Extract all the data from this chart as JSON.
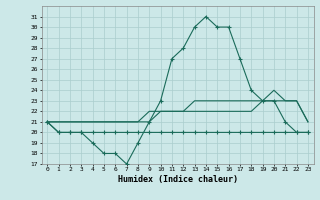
{
  "x": [
    0,
    1,
    2,
    3,
    4,
    5,
    6,
    7,
    8,
    9,
    10,
    11,
    12,
    13,
    14,
    15,
    16,
    17,
    18,
    19,
    20,
    21,
    22,
    23
  ],
  "line_main": [
    21,
    20,
    20,
    20,
    19,
    18,
    18,
    17,
    19,
    21,
    23,
    27,
    28,
    30,
    31,
    30,
    30,
    27,
    24,
    23,
    23,
    21,
    20,
    20
  ],
  "line_min": [
    21,
    20,
    20,
    20,
    20,
    20,
    20,
    20,
    20,
    20,
    20,
    20,
    20,
    20,
    20,
    20,
    20,
    20,
    20,
    20,
    20,
    20,
    20,
    20
  ],
  "line_diag1": [
    21,
    21,
    21,
    21,
    21,
    21,
    21,
    21,
    21,
    21,
    22,
    22,
    22,
    22,
    22,
    22,
    22,
    22,
    22,
    23,
    23,
    23,
    23,
    21
  ],
  "line_diag2": [
    21,
    21,
    21,
    21,
    21,
    21,
    21,
    21,
    21,
    22,
    22,
    22,
    22,
    23,
    23,
    23,
    23,
    23,
    23,
    23,
    24,
    23,
    23,
    21
  ],
  "color": "#1a6b5a",
  "bg_color": "#cce8e8",
  "grid_color": "#aacece",
  "xlabel": "Humidex (Indice chaleur)",
  "ylim": [
    17,
    32
  ],
  "xlim": [
    -0.5,
    23.5
  ],
  "yticks": [
    17,
    18,
    19,
    20,
    21,
    22,
    23,
    24,
    25,
    26,
    27,
    28,
    29,
    30,
    31
  ],
  "xticks": [
    0,
    1,
    2,
    3,
    4,
    5,
    6,
    7,
    8,
    9,
    10,
    11,
    12,
    13,
    14,
    15,
    16,
    17,
    18,
    19,
    20,
    21,
    22,
    23
  ]
}
